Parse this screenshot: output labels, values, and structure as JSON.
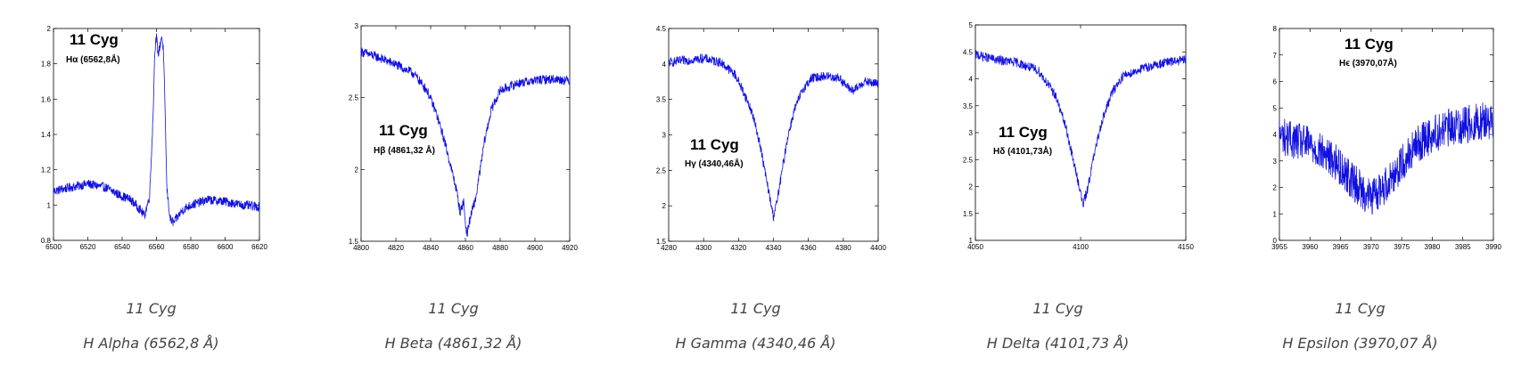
{
  "chart_data": [
    {
      "type": "line",
      "star_label": "11 Cyg",
      "line_label": "Hα (6562,8Å)",
      "caption_star": "11 Cyg",
      "caption_line": "H Alpha (6562,8 Å)",
      "xlim": [
        6500,
        6620
      ],
      "ylim": [
        0.8,
        2
      ],
      "xticks": [
        6500,
        6520,
        6540,
        6560,
        6580,
        6600,
        6620
      ],
      "yticks": [
        0.8,
        1,
        1.2,
        1.4,
        1.6,
        1.8,
        2
      ],
      "color": "#1010e0",
      "series": [
        {
          "x": [
            6500,
            6510,
            6520,
            6530,
            6540,
            6545,
            6550,
            6553,
            6556,
            6558,
            6559,
            6560,
            6561,
            6562,
            6563,
            6564,
            6565,
            6566,
            6568,
            6570,
            6575,
            6580,
            6590,
            6600,
            6610,
            6620
          ],
          "values": [
            1.08,
            1.1,
            1.12,
            1.1,
            1.05,
            1.03,
            0.98,
            0.94,
            1.05,
            1.5,
            1.88,
            1.95,
            1.85,
            1.9,
            1.96,
            1.88,
            1.55,
            1.1,
            0.92,
            0.9,
            0.97,
            1.0,
            1.03,
            1.02,
            1.0,
            0.99
          ]
        }
      ]
    },
    {
      "type": "line",
      "star_label": "11 Cyg",
      "line_label": "Hβ (4861,32 Å)",
      "caption_star": "11 Cyg",
      "caption_line": "H Beta (4861,32 Å)",
      "xlim": [
        4800,
        4920
      ],
      "ylim": [
        1.5,
        3
      ],
      "xticks": [
        4800,
        4820,
        4840,
        4860,
        4880,
        4900,
        4920
      ],
      "yticks": [
        1.5,
        2,
        2.5,
        3
      ],
      "color": "#1010e0",
      "series": [
        {
          "x": [
            4800,
            4810,
            4820,
            4830,
            4838,
            4843,
            4848,
            4852,
            4855,
            4857,
            4859,
            4860,
            4861,
            4862,
            4864,
            4866,
            4868,
            4871,
            4875,
            4880,
            4890,
            4900,
            4910,
            4920
          ],
          "values": [
            2.82,
            2.78,
            2.73,
            2.67,
            2.55,
            2.4,
            2.2,
            2.0,
            1.85,
            1.7,
            1.78,
            1.62,
            1.55,
            1.62,
            1.72,
            1.8,
            1.96,
            2.2,
            2.42,
            2.55,
            2.6,
            2.62,
            2.63,
            2.62
          ]
        }
      ]
    },
    {
      "type": "line",
      "star_label": "11 Cyg",
      "line_label": "Hγ (4340,46Å)",
      "caption_star": "11 Cyg",
      "caption_line": "H Gamma (4340,46 Å)",
      "xlim": [
        4280,
        4400
      ],
      "ylim": [
        1.5,
        4.5
      ],
      "xticks": [
        4280,
        4300,
        4320,
        4340,
        4360,
        4380,
        4400
      ],
      "yticks": [
        1.5,
        2,
        2.5,
        3,
        3.5,
        4,
        4.5
      ],
      "color": "#1010e0",
      "series": [
        {
          "x": [
            4280,
            4290,
            4300,
            4310,
            4318,
            4323,
            4328,
            4332,
            4335,
            4338,
            4340,
            4342,
            4345,
            4348,
            4352,
            4357,
            4362,
            4370,
            4378,
            4382,
            4386,
            4392,
            4400
          ],
          "values": [
            4.02,
            4.05,
            4.08,
            4.02,
            3.85,
            3.6,
            3.3,
            2.9,
            2.5,
            2.1,
            1.85,
            2.05,
            2.5,
            2.95,
            3.35,
            3.65,
            3.8,
            3.83,
            3.8,
            3.68,
            3.62,
            3.75,
            3.72
          ]
        }
      ]
    },
    {
      "type": "line",
      "star_label": "11 Cyg",
      "line_label": "Hδ (4101,73Å)",
      "caption_star": "11 Cyg",
      "caption_line": "H Delta (4101,73 Å)",
      "xlim": [
        4050,
        4150
      ],
      "ylim": [
        1,
        5
      ],
      "xticks": [
        4050,
        4100,
        4150
      ],
      "yticks": [
        1,
        1.5,
        2,
        2.5,
        3,
        3.5,
        4,
        4.5,
        5
      ],
      "color": "#1010e0",
      "series": [
        {
          "x": [
            4050,
            4060,
            4070,
            4080,
            4088,
            4093,
            4097,
            4100,
            4101,
            4103,
            4106,
            4110,
            4115,
            4120,
            4130,
            4140,
            4150
          ],
          "values": [
            4.45,
            4.35,
            4.3,
            4.15,
            3.7,
            3.1,
            2.4,
            1.9,
            1.65,
            1.9,
            2.5,
            3.2,
            3.75,
            4.05,
            4.2,
            4.3,
            4.35
          ]
        }
      ]
    },
    {
      "type": "line",
      "star_label": "11 Cyg",
      "line_label": "Hϵ (3970,07Å)",
      "caption_star": "11 Cyg",
      "caption_line": "H Epsilon (3970,07 Å)",
      "xlim": [
        3955,
        3990
      ],
      "ylim": [
        0,
        8
      ],
      "xticks": [
        3955,
        3960,
        3965,
        3970,
        3975,
        3980,
        3985,
        3990
      ],
      "yticks": [
        0,
        1,
        2,
        3,
        4,
        5,
        6,
        7,
        8
      ],
      "color": "#1010e0",
      "series": [
        {
          "x": [
            3955,
            3957,
            3960,
            3962,
            3964,
            3966,
            3968,
            3970,
            3972,
            3974,
            3976,
            3978,
            3980,
            3982,
            3984,
            3986,
            3988,
            3990
          ],
          "values": [
            4.0,
            3.8,
            3.6,
            3.3,
            3.0,
            2.5,
            2.0,
            1.6,
            2.0,
            2.6,
            3.2,
            3.7,
            4.0,
            4.2,
            4.3,
            4.4,
            4.5,
            4.5
          ]
        }
      ]
    }
  ]
}
